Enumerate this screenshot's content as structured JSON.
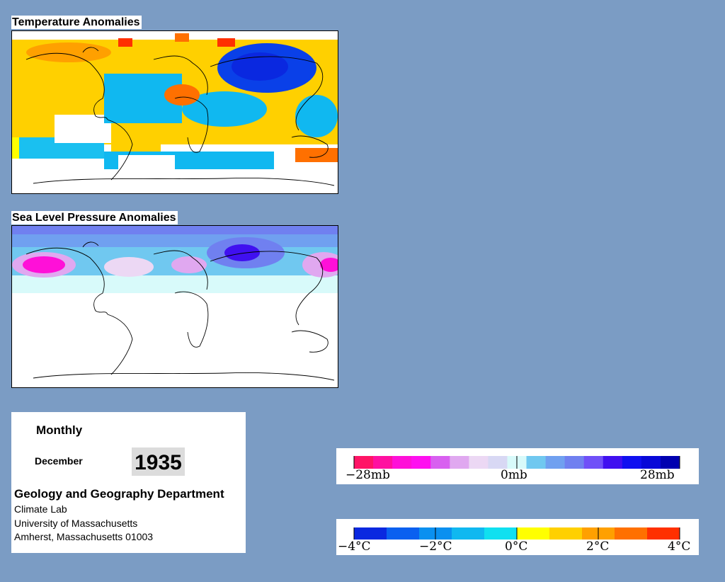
{
  "panels": {
    "temperature": {
      "title": "Temperature Anomalies"
    },
    "pressure": {
      "title": "Sea Level Pressure Anomalies"
    }
  },
  "info": {
    "period": "Monthly",
    "month": "December",
    "year": "1935",
    "department": "Geology and Geography Department",
    "lab": "Climate Lab",
    "university": "University of Massachusetts",
    "address": "Amherst, Massachusetts 01003"
  },
  "pressure_legend": {
    "labels": [
      "−28mb",
      "0mb",
      "28mb"
    ],
    "colors": [
      "#ff1466",
      "#ff10a0",
      "#ff10d8",
      "#ff10f0",
      "#d860f0",
      "#e0a8f0",
      "#ecd8f4",
      "#d8d8f4",
      "#d8fafa",
      "#70c8f0",
      "#70a0f0",
      "#7080f0",
      "#7050f8",
      "#4010f0",
      "#1010f0",
      "#0808d8",
      "#0000b0"
    ]
  },
  "temperature_legend": {
    "labels": [
      "−4°C",
      "−2°C",
      "0°C",
      "2°C",
      "4°C"
    ],
    "colors": [
      "#0a28e0",
      "#0a60f0",
      "#0a90f0",
      "#10b8f0",
      "#10e0f0",
      "#ffff00",
      "#ffd000",
      "#ffa000",
      "#ff7000",
      "#ff3000"
    ]
  }
}
